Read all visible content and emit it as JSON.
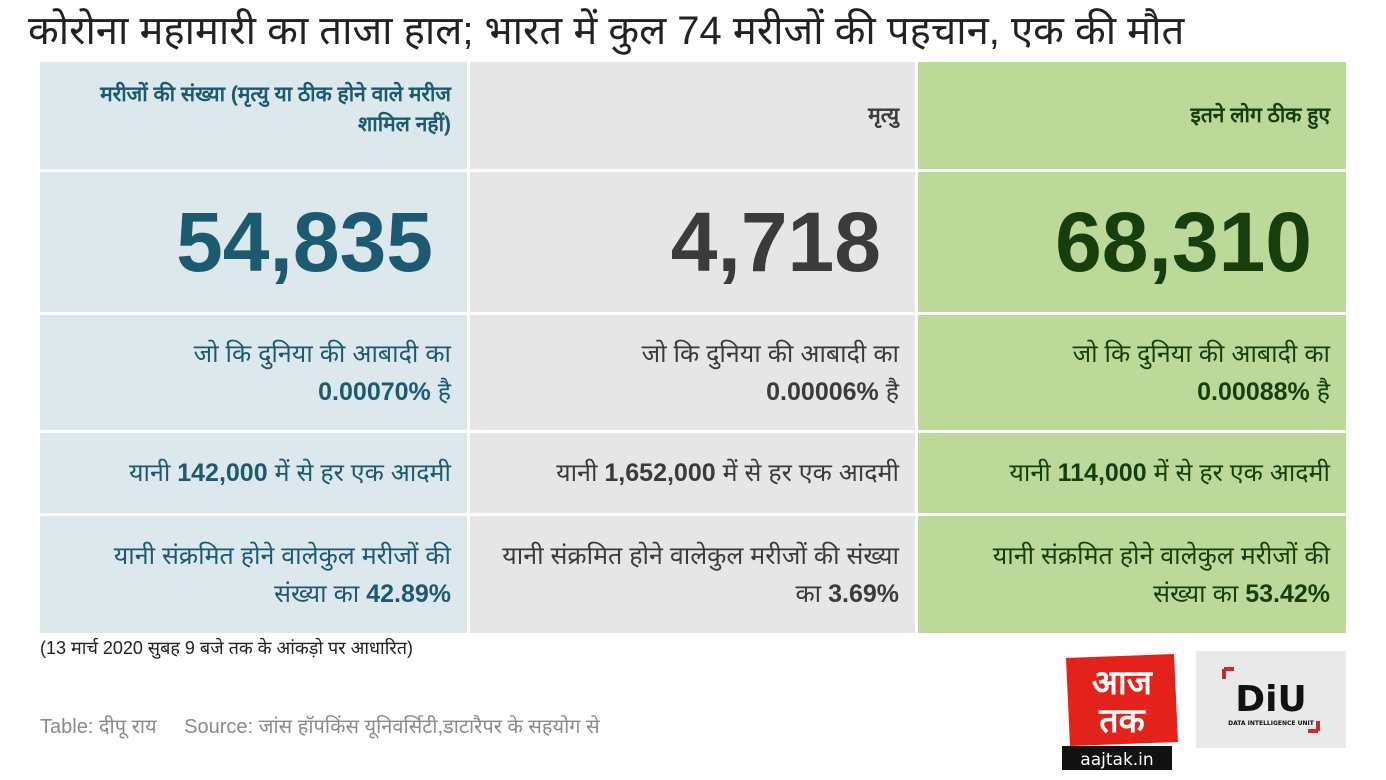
{
  "title": "कोरोना महामारी का ताजा हाल; भारत में कुल 74 मरीजों की पहचान, एक की मौत",
  "columns": [
    {
      "header": "मरीजों की संख्या (मृत्यु या ठीक होने वाले मरीज शामिल नहीं)",
      "value": "54,835",
      "pop_prefix": "जो कि दुनिया की आबादी का",
      "pop_pct": "0.00070%",
      "pop_suffix": "है",
      "ratio_prefix": "यानी",
      "ratio_num": "142,000",
      "ratio_suffix": "में से हर एक आदमी",
      "share_prefix": "यानी संक्रमित होने वालेकुल मरीजों की संख्या का",
      "share_pct": "42.89%"
    },
    {
      "header": "मृत्यु",
      "value": "4,718",
      "pop_prefix": "जो कि दुनिया की आबादी का",
      "pop_pct": "0.00006%",
      "pop_suffix": "है",
      "ratio_prefix": "यानी",
      "ratio_num": "1,652,000",
      "ratio_suffix": "में से हर एक आदमी",
      "share_prefix": "यानी संक्रमित होने वालेकुल मरीजों की संख्या का",
      "share_pct": "3.69%"
    },
    {
      "header": "इतने लोग ठीक हुए",
      "value": "68,310",
      "pop_prefix": "जो कि दुनिया की आबादी का",
      "pop_pct": "0.00088%",
      "pop_suffix": "है",
      "ratio_prefix": "यानी",
      "ratio_num": "114,000",
      "ratio_suffix": "में से हर एक आदमी",
      "share_prefix": "यानी संक्रमित होने वालेकुल मरीजों की संख्या का",
      "share_pct": "53.42%"
    }
  ],
  "footnote": "(13 मार्च 2020 सुबह 9 बजे तक के आंकड़ो पर आधारित)",
  "credit": {
    "table": "Table: दीपू राय",
    "source": "Source: जांस हॉपकिंस यूनिवर्सिटी,डाटारैपर के सहयोग से"
  },
  "logos": {
    "aajtak_line1": "आज",
    "aajtak_line2": "तक",
    "aajtak_url": "aajtak.in",
    "diu_mark": "DiU",
    "diu_sub": "DATA INTELLIGENCE UNIT"
  },
  "colors": {
    "col1_bg": "#dce8ec",
    "col1_text": "#1c5a72",
    "col2_bg": "#e6e6e6",
    "col2_text": "#3b3b3b",
    "col3_bg": "#bcd99a",
    "col3_text": "#173f0e",
    "aajtak_red": "#e3221c"
  }
}
